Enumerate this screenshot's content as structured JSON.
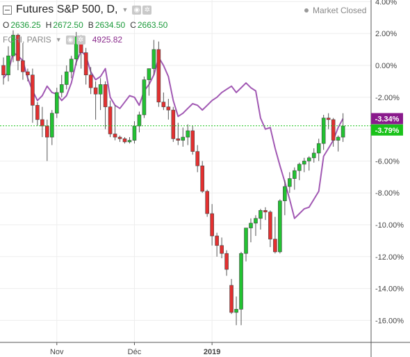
{
  "legend": {
    "title": "Futures S&P 500, D,",
    "ohlc": [
      {
        "label": "O",
        "value": "2636.25"
      },
      {
        "label": "H",
        "value": "2672.50"
      },
      {
        "label": "B",
        "value": "2634.50"
      },
      {
        "label": "C",
        "value": "2663.50"
      }
    ],
    "compare_symbol": "FCHI, PARIS",
    "compare_value": "4925.82",
    "market_status": "Market Closed"
  },
  "colors": {
    "up": "#22c232",
    "down": "#e33030",
    "compare_line": "#a158b3",
    "compare_tag": "#8a1a8c",
    "price_tag": "#19c219",
    "price_line": "#19c219"
  },
  "chart_data": {
    "type": "candlestick",
    "y_unit": "%",
    "ylim": [
      -17.4,
      4.2
    ],
    "y_ticks": [
      "4.00%",
      "2.00%",
      "0.00%",
      "-2.00%",
      "-4.00%",
      "-6.00%",
      "-8.00%",
      "-10.00%",
      "-12.00%",
      "-14.00%",
      "-16.00%"
    ],
    "y_tick_values": [
      4,
      2,
      0,
      -2,
      -4,
      -6,
      -8,
      -10,
      -12,
      -14,
      -16
    ],
    "x_ticks": [
      {
        "label": "Nov",
        "index": 11,
        "bold": false
      },
      {
        "label": "Déc",
        "index": 27,
        "bold": false
      },
      {
        "label": "2019",
        "index": 43,
        "bold": true
      }
    ],
    "grid": true,
    "candles": [
      [
        0.0,
        0.5,
        -1.2,
        -0.6
      ],
      [
        -0.6,
        1.2,
        -1.0,
        0.6
      ],
      [
        0.6,
        2.2,
        0.2,
        1.9
      ],
      [
        1.9,
        2.0,
        -0.3,
        0.3
      ],
      [
        0.3,
        1.4,
        -0.9,
        -0.4
      ],
      [
        -0.4,
        -0.2,
        -1.0,
        -0.6
      ],
      [
        -0.6,
        -0.2,
        -3.6,
        -2.5
      ],
      [
        -2.5,
        -2.3,
        -3.8,
        -3.4
      ],
      [
        -3.4,
        -2.6,
        -4.5,
        -3.8
      ],
      [
        -3.8,
        -3.4,
        -6.0,
        -4.5
      ],
      [
        -4.5,
        -2.8,
        -5.0,
        -3.0
      ],
      [
        -3.0,
        -1.4,
        -3.3,
        -1.7
      ],
      [
        -1.7,
        -0.6,
        -2.0,
        -1.2
      ],
      [
        -1.2,
        0.0,
        -1.5,
        -0.4
      ],
      [
        -0.4,
        0.6,
        -0.8,
        0.4
      ],
      [
        0.4,
        2.1,
        0.0,
        1.8
      ],
      [
        1.8,
        1.9,
        -0.2,
        0.8
      ],
      [
        0.8,
        1.1,
        -1.2,
        -0.6
      ],
      [
        -0.6,
        -0.1,
        -1.8,
        -1.4
      ],
      [
        -1.4,
        -1.0,
        -3.4,
        -1.8
      ],
      [
        -1.8,
        -0.8,
        -2.8,
        -1.2
      ],
      [
        -1.2,
        -1.0,
        -4.0,
        -2.6
      ],
      [
        -2.6,
        -2.2,
        -4.5,
        -4.3
      ],
      [
        -4.3,
        -2.5,
        -4.7,
        -4.5
      ],
      [
        -4.5,
        -4.4,
        -4.8,
        -4.6
      ],
      [
        -4.6,
        -4.5,
        -4.9,
        -4.8
      ],
      [
        -4.8,
        -4.5,
        -4.9,
        -4.7
      ],
      [
        -4.7,
        -3.5,
        -4.9,
        -3.8
      ],
      [
        -3.8,
        -2.9,
        -4.2,
        -3.1
      ],
      [
        -3.1,
        -0.7,
        -3.3,
        -0.9
      ],
      [
        -0.9,
        -0.2,
        -1.9,
        -0.2
      ],
      [
        -0.2,
        1.6,
        -0.6,
        1.0
      ],
      [
        1.0,
        1.5,
        -2.6,
        -2.3
      ],
      [
        -2.3,
        -1.7,
        -2.8,
        -2.6
      ],
      [
        -2.6,
        -2.1,
        -3.4,
        -2.8
      ],
      [
        -2.8,
        -2.6,
        -4.8,
        -4.6
      ],
      [
        -4.6,
        -3.6,
        -5.0,
        -4.7
      ],
      [
        -4.7,
        -3.9,
        -5.1,
        -4.5
      ],
      [
        -4.5,
        -3.7,
        -5.0,
        -4.1
      ],
      [
        -4.1,
        -3.8,
        -5.6,
        -5.4
      ],
      [
        -5.4,
        -5.0,
        -6.7,
        -6.3
      ],
      [
        -6.3,
        -6.0,
        -8.0,
        -7.9
      ],
      [
        -7.9,
        -7.8,
        -9.5,
        -9.3
      ],
      [
        -9.3,
        -8.7,
        -11.3,
        -10.7
      ],
      [
        -10.7,
        -10.5,
        -12.0,
        -11.3
      ],
      [
        -11.3,
        -10.8,
        -12.1,
        -11.8
      ],
      [
        -11.8,
        -11.6,
        -13.2,
        -12.8
      ],
      [
        -13.8,
        -13.4,
        -15.6,
        -15.5
      ],
      [
        -15.5,
        -14.5,
        -16.3,
        -15.3
      ],
      [
        -15.3,
        -11.7,
        -16.3,
        -11.8
      ],
      [
        -11.8,
        -10.4,
        -12.3,
        -10.2
      ],
      [
        -10.2,
        -9.6,
        -11.1,
        -9.9
      ],
      [
        -9.9,
        -9.4,
        -10.7,
        -9.6
      ],
      [
        -9.6,
        -9.0,
        -10.3,
        -9.1
      ],
      [
        -9.1,
        -8.9,
        -9.7,
        -9.2
      ],
      [
        -9.2,
        -9.1,
        -11.4,
        -10.9
      ],
      [
        -10.9,
        -9.5,
        -11.8,
        -11.7
      ],
      [
        -11.7,
        -8.4,
        -11.8,
        -8.5
      ],
      [
        -8.5,
        -7.2,
        -9.4,
        -7.6
      ],
      [
        -7.6,
        -6.7,
        -8.0,
        -7.1
      ],
      [
        -7.1,
        -6.4,
        -7.8,
        -6.6
      ],
      [
        -6.6,
        -6.1,
        -7.2,
        -6.2
      ],
      [
        -6.2,
        -5.8,
        -6.7,
        -6.0
      ],
      [
        -6.0,
        -5.7,
        -6.6,
        -5.8
      ],
      [
        -5.8,
        -5.2,
        -6.1,
        -5.5
      ],
      [
        -5.5,
        -4.6,
        -6.0,
        -4.9
      ],
      [
        -4.9,
        -3.1,
        -5.3,
        -3.3
      ],
      [
        -3.3,
        -3.0,
        -4.0,
        -3.4
      ],
      [
        -3.4,
        -3.3,
        -5.1,
        -4.7
      ],
      [
        -4.7,
        -4.4,
        -5.4,
        -4.5
      ],
      [
        -4.5,
        -3.0,
        -4.8,
        -3.8
      ]
    ],
    "compare_series": {
      "name": "FCHI, PARIS",
      "values": [
        -0.8,
        -0.4,
        0.8,
        0.6,
        0.3,
        -0.8,
        -1.6,
        -2.2,
        -1.9,
        -1.3,
        -1.7,
        -1.8,
        -2.2,
        -1.9,
        -1.1,
        0.2,
        0.9,
        0.6,
        -0.4,
        -0.9,
        -0.7,
        -0.2,
        -2.0,
        -2.5,
        -2.7,
        -2.3,
        -1.9,
        -2.0,
        -2.5,
        -1.6,
        -1.2,
        -0.6,
        0.5,
        0.0,
        -0.7,
        -2.2,
        -3.2,
        -3.0,
        -2.7,
        -2.4,
        -2.5,
        -2.8,
        -2.5,
        -2.2,
        -2.0,
        -1.7,
        -1.5,
        -1.3,
        -1.7,
        -1.4,
        -1.1,
        -1.4,
        -1.6,
        -3.3,
        -4.0,
        -3.9,
        -5.2,
        -6.3,
        -7.3,
        -8.4,
        -9.6,
        -9.3,
        -9.0,
        -8.9,
        -8.4,
        -7.9,
        -5.7,
        -5.2,
        -4.7,
        -3.9,
        -3.34
      ]
    },
    "last_compare_label": "-3.34%",
    "last_price_label": "-3.79%",
    "last_price_value": -3.79
  }
}
